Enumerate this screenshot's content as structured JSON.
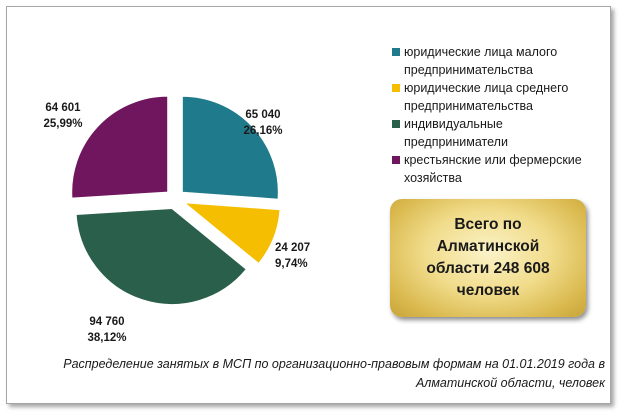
{
  "chart_data": {
    "type": "pie",
    "title": "",
    "slices": [
      {
        "name": "юридические лица малого предпринимательства",
        "value": 65040,
        "value_label": "65 040",
        "percent_label": "26,16%",
        "color": "#1f7a8c"
      },
      {
        "name": "юридические лица среднего предпринимательства",
        "value": 24207,
        "value_label": "24 207",
        "percent_label": "9,74%",
        "color": "#f5be00"
      },
      {
        "name": "индивидуальные предприниматели",
        "value": 94760,
        "value_label": "94 760",
        "percent_label": "38,12%",
        "color": "#2a5f4b"
      },
      {
        "name": "крестьянские или фермерские хозяйства",
        "value": 64601,
        "value_label": "64 601",
        "percent_label": "25,99%",
        "color": "#70165e"
      }
    ],
    "legend_position": "top-right",
    "legend": [
      {
        "line1": "юридические лица малого",
        "line2": "предпринимательства"
      },
      {
        "line1": "юридические лица среднего",
        "line2": "предпринимательства"
      },
      {
        "line1": "индивидуальные",
        "line2": "предприниматели"
      },
      {
        "line1": "крестьянские или фермерские",
        "line2": "хозяйства"
      }
    ]
  },
  "total_box": {
    "line1": "Всего по",
    "line2": "Алматинской",
    "line3": "области 248 608",
    "line4": "человек"
  },
  "caption": {
    "line1": "Распределение занятых в МСП по организационно-правовым формам на 01.01.2019  года в",
    "line2": "Алматинской области, человек"
  }
}
